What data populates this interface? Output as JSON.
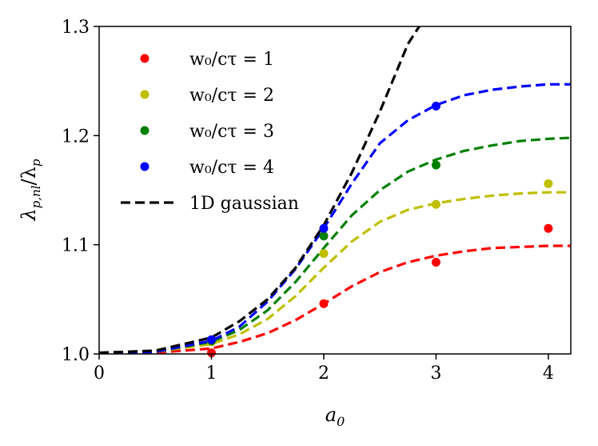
{
  "chart_data": {
    "type": "line",
    "title": "",
    "xlabel": "a_0",
    "ylabel": "λ_{p,nl}/λ_p",
    "xlim": [
      0,
      4.2
    ],
    "ylim": [
      1.0,
      1.3
    ],
    "xticks": [
      0,
      1,
      2,
      3,
      4
    ],
    "xtick_labels": [
      "0",
      "1",
      "2",
      "3",
      "4"
    ],
    "yticks": [
      1.0,
      1.1,
      1.2,
      1.3
    ],
    "ytick_labels": [
      "1.0",
      "1.1",
      "1.2",
      "1.3"
    ],
    "grid": false,
    "legend_position": "top-left",
    "series": [
      {
        "name": "w0/cτ = 1",
        "label": "w₀/cτ = 1",
        "color": "#ff0000",
        "kind": "scatter+dashed",
        "points": {
          "x": [
            1,
            2,
            3,
            4
          ],
          "y": [
            1.001,
            1.046,
            1.084,
            1.115
          ]
        },
        "curve": {
          "x": [
            0,
            0.5,
            1.0,
            1.25,
            1.5,
            1.75,
            2.0,
            2.25,
            2.5,
            2.75,
            3.0,
            3.25,
            3.5,
            3.75,
            4.0,
            4.2
          ],
          "y": [
            1.001,
            1.001,
            1.005,
            1.011,
            1.019,
            1.031,
            1.046,
            1.062,
            1.075,
            1.084,
            1.09,
            1.094,
            1.097,
            1.098,
            1.099,
            1.099
          ]
        }
      },
      {
        "name": "w0/cτ = 2",
        "label": "w₀/cτ = 2",
        "color": "#bfbf00",
        "kind": "scatter+dashed",
        "points": {
          "x": [
            1,
            2,
            3,
            4
          ],
          "y": [
            1.011,
            1.092,
            1.137,
            1.156
          ]
        },
        "curve": {
          "x": [
            0,
            0.5,
            1.0,
            1.25,
            1.5,
            1.75,
            2.0,
            2.25,
            2.5,
            2.75,
            3.0,
            3.25,
            3.5,
            3.75,
            4.0,
            4.2
          ],
          "y": [
            1.001,
            1.002,
            1.009,
            1.018,
            1.032,
            1.053,
            1.079,
            1.103,
            1.121,
            1.132,
            1.138,
            1.142,
            1.145,
            1.147,
            1.148,
            1.148
          ]
        }
      },
      {
        "name": "w0/cτ = 3",
        "label": "w₀/cτ = 3",
        "color": "#008000",
        "kind": "scatter+dashed",
        "points": {
          "x": [
            1,
            2,
            3
          ],
          "y": [
            1.012,
            1.108,
            1.173
          ]
        },
        "curve": {
          "x": [
            0,
            0.5,
            1.0,
            1.25,
            1.5,
            1.75,
            2.0,
            2.25,
            2.5,
            2.75,
            3.0,
            3.25,
            3.5,
            3.75,
            4.0,
            4.2
          ],
          "y": [
            1.001,
            1.002,
            1.011,
            1.022,
            1.04,
            1.066,
            1.097,
            1.127,
            1.15,
            1.167,
            1.178,
            1.186,
            1.191,
            1.195,
            1.197,
            1.198
          ]
        }
      },
      {
        "name": "w0/cτ = 4",
        "label": "w₀/cτ = 4",
        "color": "#0000ff",
        "kind": "scatter+dashed",
        "points": {
          "x": [
            1,
            2,
            3
          ],
          "y": [
            1.013,
            1.115,
            1.227
          ]
        },
        "curve": {
          "x": [
            0,
            0.5,
            1.0,
            1.25,
            1.5,
            1.75,
            2.0,
            2.25,
            2.5,
            2.75,
            3.0,
            3.25,
            3.5,
            3.75,
            4.0,
            4.2
          ],
          "y": [
            1.001,
            1.002,
            1.012,
            1.025,
            1.048,
            1.078,
            1.115,
            1.156,
            1.193,
            1.214,
            1.228,
            1.237,
            1.242,
            1.245,
            1.247,
            1.247
          ]
        }
      },
      {
        "name": "1D gaussian",
        "label": "1D gaussian",
        "color": "#000000",
        "kind": "dashed",
        "curve": {
          "x": [
            0,
            0.5,
            1.0,
            1.25,
            1.5,
            1.75,
            2.0,
            2.25,
            2.5,
            2.75,
            2.85
          ],
          "y": [
            1.001,
            1.003,
            1.015,
            1.03,
            1.05,
            1.079,
            1.118,
            1.166,
            1.222,
            1.284,
            1.3
          ]
        }
      }
    ]
  }
}
